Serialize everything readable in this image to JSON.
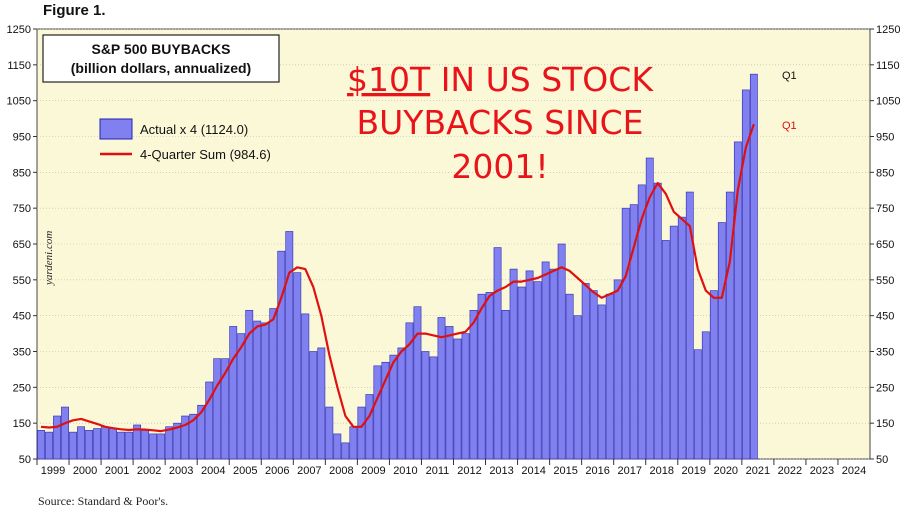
{
  "figure_label": "Figure 1.",
  "source_note": "Source: Standard & Poor's.",
  "watermark": "yardeni.com",
  "callout": {
    "line1_underlined": "$10T",
    "line1_rest": " IN US STOCK",
    "line2": "BUYBACKS SINCE",
    "line3": "2001!",
    "color": "#e8141a"
  },
  "chart_data": {
    "type": "bar",
    "title": "S&P 500 BUYBACKS",
    "subtitle": "(billion dollars, annualized)",
    "ylim": [
      50,
      1250
    ],
    "y_ticks": [
      50,
      150,
      250,
      350,
      450,
      550,
      650,
      750,
      850,
      950,
      1050,
      1150,
      1250
    ],
    "y_tick_labels_left": [
      "50",
      "150",
      "250",
      "350",
      "450",
      "550",
      "650",
      "750",
      "850",
      "950",
      "1050",
      "1150",
      "1250"
    ],
    "y_tick_labels_right": [
      "50",
      "150",
      "250",
      "350",
      "450",
      "550",
      "650",
      "750",
      "850",
      "950",
      "1050",
      "1150",
      "1250"
    ],
    "x_labels": [
      "1999",
      "2000",
      "2001",
      "2002",
      "2003",
      "2004",
      "2005",
      "2006",
      "2007",
      "2008",
      "2009",
      "2010",
      "2011",
      "2012",
      "2013",
      "2014",
      "2015",
      "2016",
      "2017",
      "2018",
      "2019",
      "2020",
      "2021",
      "2022",
      "2023",
      "2024"
    ],
    "x_start_year": 1999,
    "x_end_year": 2024,
    "bar_color": "#8080f0",
    "line_color": "#e01010",
    "legend": {
      "position": "top-left",
      "bar_label": "Actual x 4 (1124.0)",
      "line_label": "4-Quarter Sum (984.6)"
    },
    "end_labels": {
      "bar": "Q1",
      "line": "Q1"
    },
    "series": [
      {
        "name": "Actual x 4",
        "kind": "bar",
        "values": [
          130,
          125,
          170,
          195,
          125,
          140,
          130,
          135,
          140,
          135,
          125,
          125,
          145,
          130,
          120,
          120,
          140,
          150,
          170,
          175,
          200,
          265,
          330,
          330,
          420,
          400,
          465,
          435,
          430,
          470,
          630,
          685,
          570,
          455,
          350,
          360,
          195,
          120,
          95,
          140,
          195,
          230,
          310,
          320,
          340,
          360,
          430,
          475,
          350,
          335,
          445,
          420,
          385,
          400,
          465,
          510,
          515,
          640,
          465,
          580,
          530,
          575,
          545,
          600,
          580,
          650,
          510,
          450,
          540,
          520,
          480,
          510,
          550,
          750,
          760,
          815,
          890,
          820,
          660,
          700,
          725,
          795,
          355,
          405,
          520,
          710,
          795,
          935,
          1080,
          1124
        ]
      },
      {
        "name": "4-Quarter Sum",
        "kind": "line",
        "values": [
          140,
          138,
          140,
          150,
          158,
          162,
          155,
          148,
          140,
          136,
          133,
          131,
          133,
          132,
          130,
          128,
          132,
          138,
          145,
          158,
          180,
          215,
          255,
          290,
          330,
          362,
          400,
          420,
          425,
          440,
          500,
          570,
          585,
          580,
          530,
          450,
          340,
          250,
          170,
          140,
          140,
          170,
          220,
          270,
          320,
          350,
          370,
          400,
          400,
          395,
          390,
          395,
          400,
          405,
          430,
          470,
          505,
          520,
          530,
          545,
          545,
          550,
          555,
          565,
          575,
          585,
          575,
          555,
          535,
          515,
          500,
          510,
          520,
          560,
          640,
          720,
          780,
          820,
          790,
          740,
          720,
          700,
          580,
          520,
          500,
          500,
          600,
          800,
          920,
          984.6
        ]
      }
    ]
  }
}
